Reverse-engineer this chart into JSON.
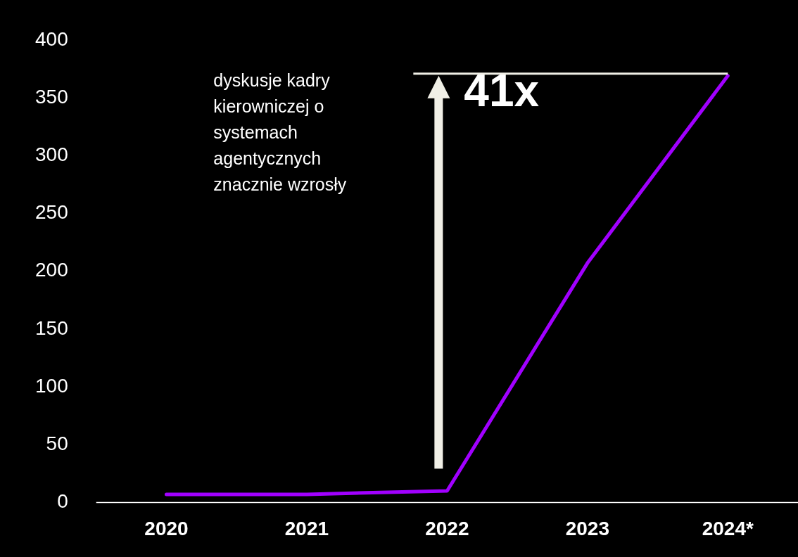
{
  "chart_data": {
    "type": "line",
    "categories": [
      "2020",
      "2021",
      "2022",
      "2023",
      "2024*"
    ],
    "series": [
      {
        "color": "#a100ff",
        "values": [
          7,
          7,
          10,
          207,
          369
        ]
      }
    ],
    "ylim": [
      0,
      400
    ],
    "yticks": [
      0,
      50,
      100,
      150,
      200,
      250,
      300,
      350,
      400
    ],
    "grid": false,
    "legend": false,
    "marker": "none",
    "line_style": "solid",
    "annotations": [
      "dyskusje kadry kierowniczej o systemach agentycznych znacznie wzrosły",
      "41x"
    ]
  }
}
